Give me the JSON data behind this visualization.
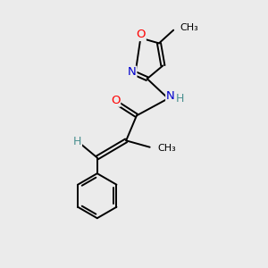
{
  "background_color": "#ebebeb",
  "bond_color": "#000000",
  "atom_colors": {
    "O": "#ff0000",
    "N": "#0000cd",
    "C": "#000000",
    "H": "#4a9090"
  },
  "figsize": [
    3.0,
    3.0
  ],
  "dpi": 100
}
